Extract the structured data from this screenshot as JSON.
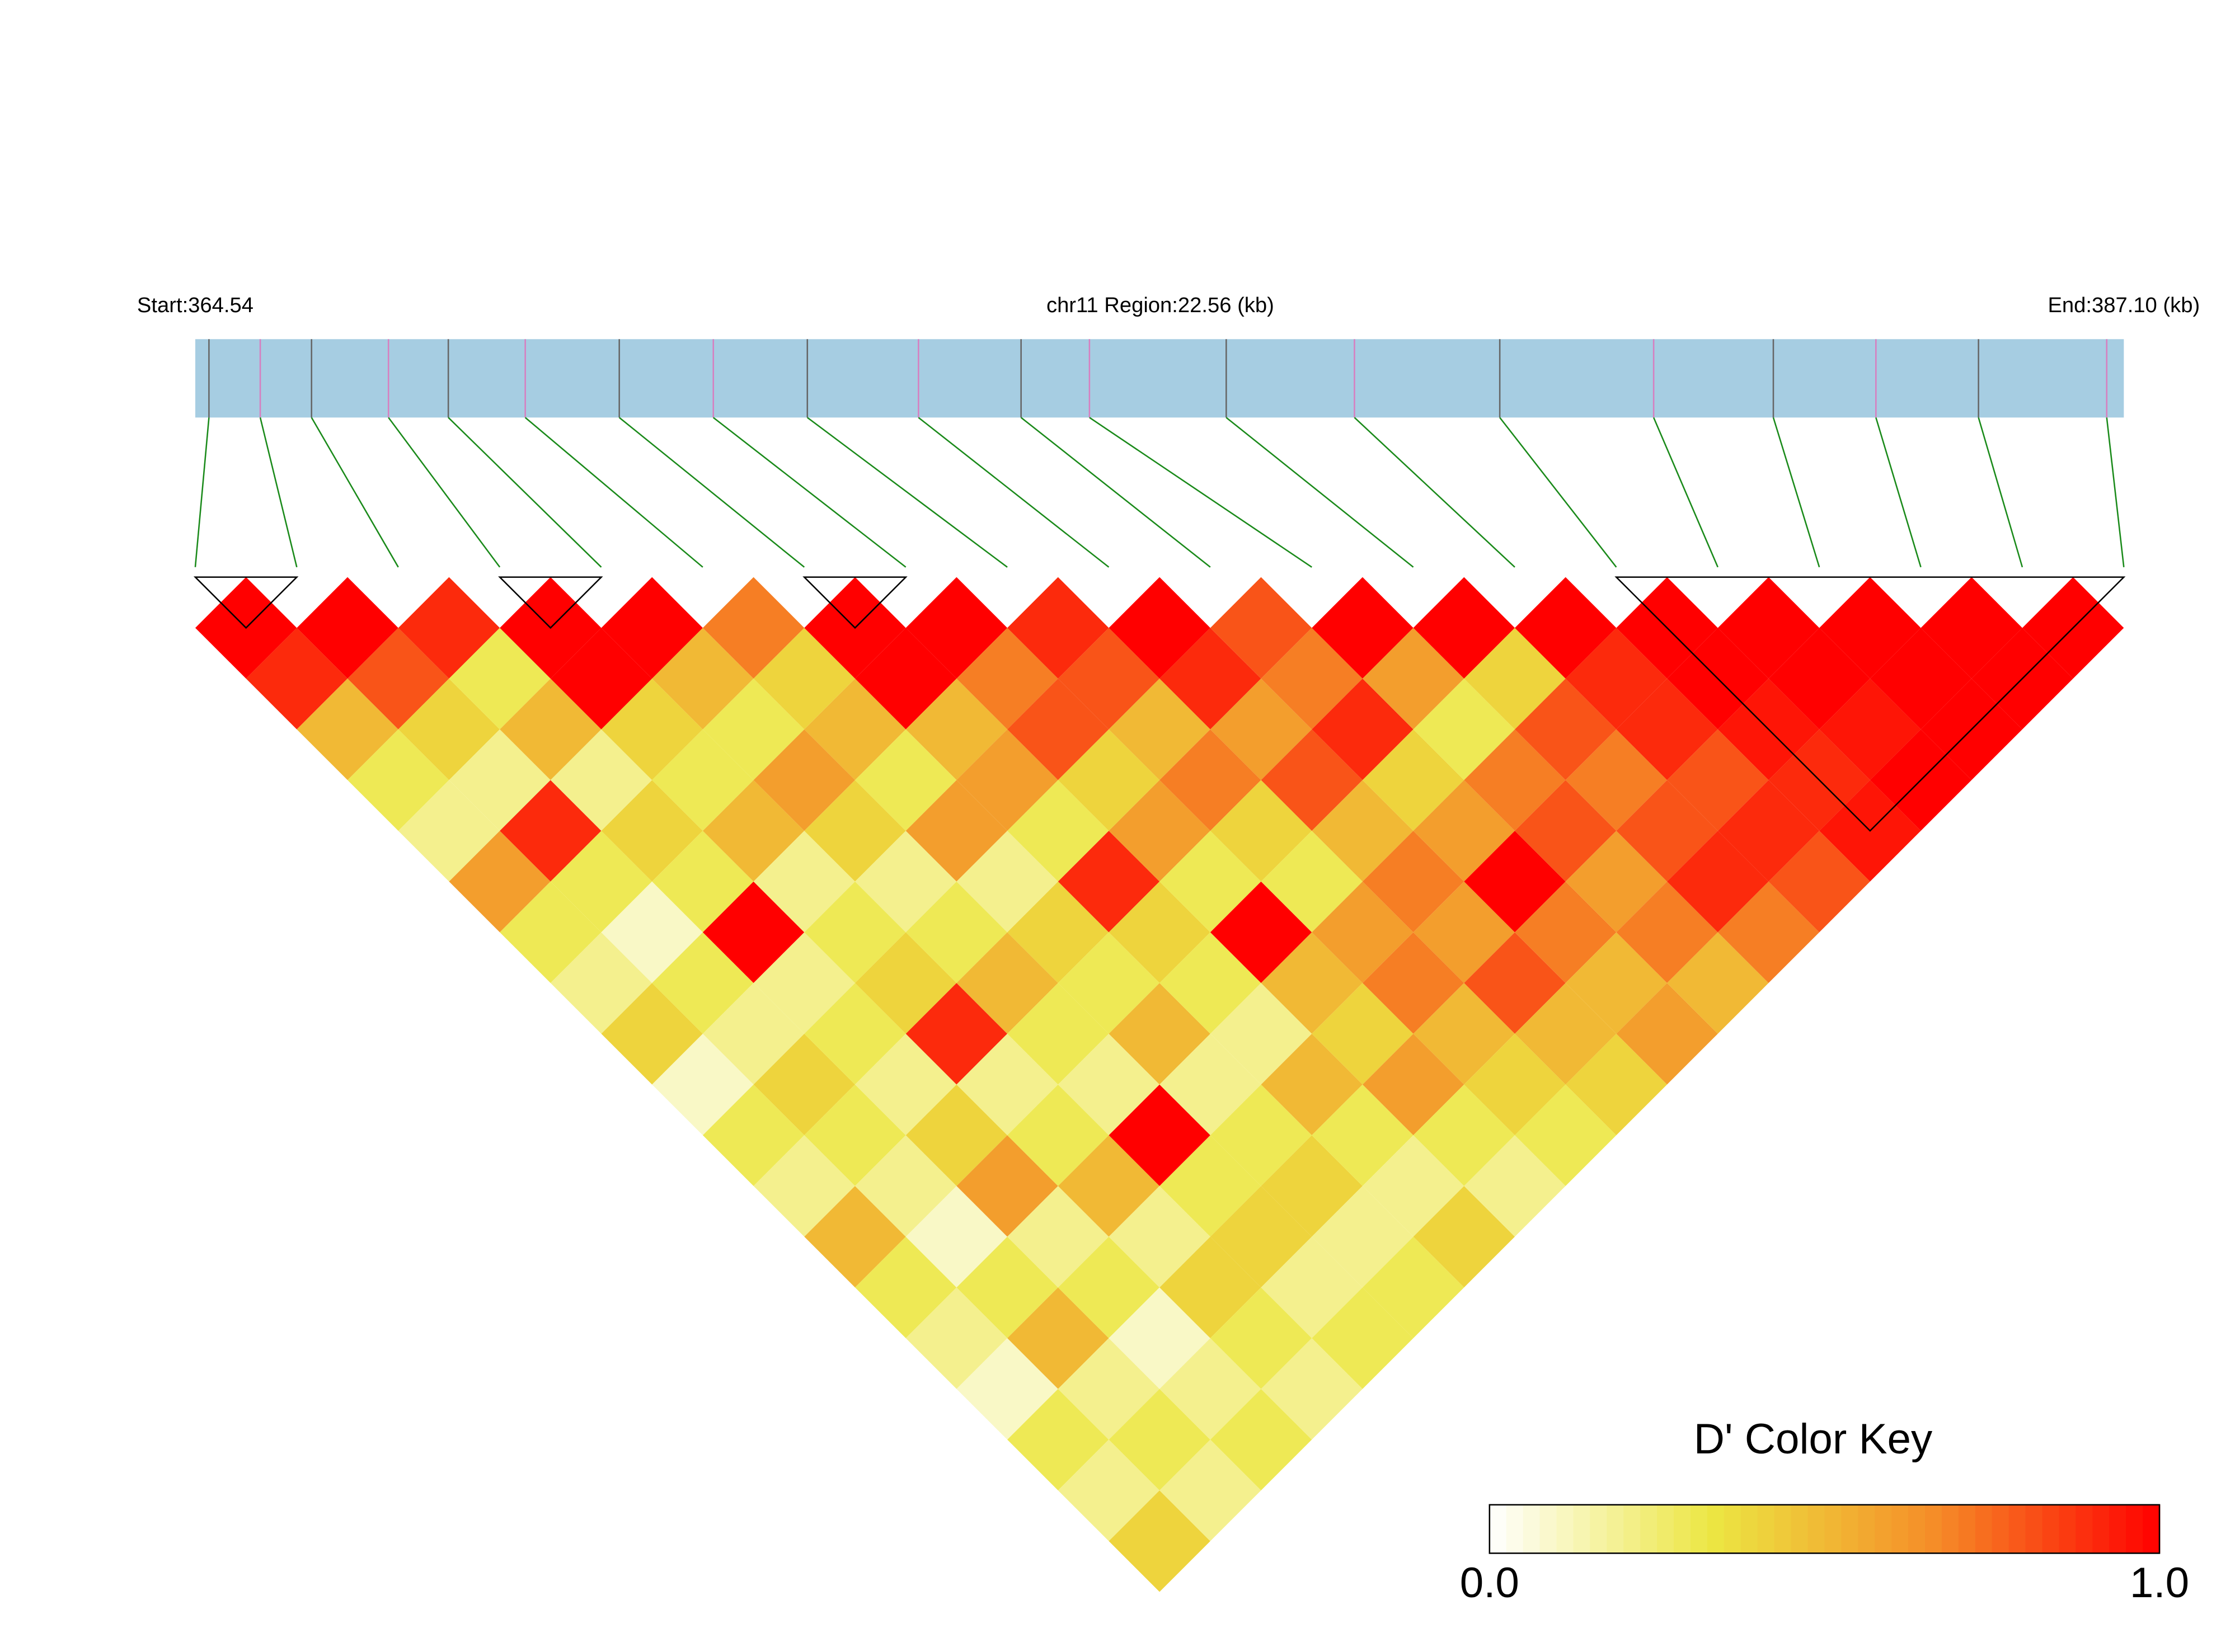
{
  "chart_data": {
    "type": "ld_heatmap",
    "start_label": "Start:364.54",
    "title": "chr11 Region:22.56 (kb)",
    "end_label": "End:387.10 (kb)",
    "xlim": [
      364.54,
      387.1
    ],
    "x": [
      364.7,
      365.3,
      365.9,
      366.8,
      367.5,
      368.4,
      369.5,
      370.6,
      371.7,
      373.0,
      374.2,
      375.0,
      376.6,
      378.1,
      379.8,
      381.6,
      383.0,
      384.2,
      385.4,
      386.9
    ],
    "ld": [
      [
        1,
        0.9,
        0.5,
        0.3,
        0.2,
        0.6,
        0.3,
        0.2,
        0.4,
        0.1,
        0.3,
        0.2,
        0.5,
        0.3,
        0.2,
        0.1,
        0.3,
        0.2,
        0.4
      ],
      [
        1,
        0.8,
        0.4,
        0.2,
        0.9,
        0.3,
        0.1,
        0.3,
        0.2,
        0.4,
        0.3,
        0.2,
        0.1,
        0.3,
        0.5,
        0.2,
        0.3,
        0.2
      ],
      [
        0.9,
        0.3,
        0.5,
        0.2,
        0.4,
        0.3,
        1,
        0.2,
        0.3,
        0.2,
        0.4,
        0.6,
        0.2,
        0.3,
        0.1,
        0.2,
        0.3
      ],
      [
        1,
        1,
        0.4,
        0.3,
        0.5,
        0.2,
        0.3,
        0.4,
        0.9,
        0.2,
        0.3,
        0.5,
        0.2,
        0.4,
        0.3,
        0.2
      ],
      [
        1,
        0.5,
        0.3,
        0.6,
        0.4,
        0.2,
        0.3,
        0.5,
        0.3,
        0.2,
        1,
        0.3,
        0.4,
        0.2,
        0.3
      ],
      [
        0.7,
        0.4,
        0.5,
        0.3,
        0.6,
        0.2,
        0.4,
        0.3,
        0.5,
        0.2,
        0.3,
        0.4,
        0.2,
        0.3
      ],
      [
        1,
        1,
        0.5,
        0.6,
        0.3,
        0.9,
        0.4,
        0.3,
        0.2,
        0.5,
        0.3,
        0.2,
        0.4
      ],
      [
        1,
        0.7,
        0.8,
        0.4,
        0.6,
        0.3,
        1,
        0.5,
        0.4,
        0.6,
        0.3,
        0.2
      ],
      [
        0.9,
        0.8,
        0.5,
        0.7,
        0.4,
        0.3,
        0.6,
        0.7,
        0.5,
        0.4,
        0.3
      ],
      [
        1,
        0.9,
        0.6,
        0.8,
        0.5,
        0.7,
        0.6,
        0.8,
        0.5,
        0.4
      ],
      [
        0.8,
        0.7,
        0.9,
        0.4,
        0.6,
        1,
        0.7,
        0.5,
        0.6
      ],
      [
        1,
        0.6,
        0.3,
        0.7,
        0.8,
        0.6,
        0.7,
        0.5
      ],
      [
        1,
        0.4,
        0.8,
        0.7,
        0.8,
        0.9,
        0.7
      ],
      [
        1,
        0.9,
        0.9,
        0.8,
        0.9,
        0.8
      ],
      [
        1,
        1,
        0.95,
        0.9,
        0.95
      ],
      [
        1,
        1,
        0.95,
        1
      ],
      [
        1,
        1,
        1
      ],
      [
        1,
        1
      ],
      [
        1
      ]
    ],
    "blocks": [
      [
        0,
        1
      ],
      [
        3,
        4
      ],
      [
        6,
        7
      ],
      [
        14,
        19
      ]
    ],
    "colorscale": [
      "#ffffff",
      "#ece642",
      "#f58c28",
      "#ff0000"
    ],
    "track_color": "#a6cde2",
    "connector_color": "#1a8a1a",
    "key_title": "D' Color Key",
    "key_ticks": [
      {
        "value": 0,
        "label": "0.0"
      },
      {
        "value": 1,
        "label": "1.0"
      }
    ]
  }
}
